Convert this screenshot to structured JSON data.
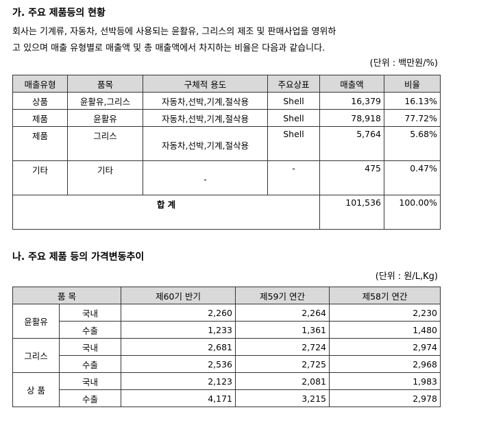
{
  "products": {
    "heading": "가. 주요 제품등의 현황",
    "description": [
      "회사는 기계류, 자동차, 선박등에 사용되는 윤활유, 그리스의 제조 및 판매사업을 영위하",
      "고 있으며 매출 유형별로 매출액 및 총 매출액에서 차지하는 비율은 다음과 같습니다."
    ],
    "unit": "(단위 : 백만원/%)",
    "columns": [
      "매출유형",
      "품목",
      "구체적 용도",
      "주요상표",
      "매출액",
      "비율"
    ],
    "rows": [
      [
        "상품",
        "윤활유,그리스",
        "자동차,선박,기계,절삭용",
        "Shell",
        "16,379",
        "16.13%"
      ],
      [
        "제품",
        "윤활유",
        "자동차,선박,기계,절삭용",
        "Shell",
        "78,918",
        "77.72%"
      ],
      [
        "제품",
        "그리스",
        "자동차,선박,기계,절삭용",
        "Shell",
        "5,764",
        "5.68%"
      ],
      [
        "기타",
        "기타",
        "-",
        "-",
        "475",
        "0.47%"
      ]
    ],
    "total": {
      "label": "합 계",
      "amount": "101,536",
      "ratio": "100.00%"
    }
  },
  "prices": {
    "heading": "나. 주요 제품 등의 가격변동추이",
    "unit": "(단위 : 원/L,Kg)",
    "columns": [
      "품 목",
      "제60기 반기",
      "제59기 연간",
      "제58기 연간"
    ],
    "groups": [
      {
        "name": "윤활유",
        "rows": [
          {
            "market": "국내",
            "values": [
              "2,260",
              "2,264",
              "2,230"
            ]
          },
          {
            "market": "수출",
            "values": [
              "1,233",
              "1,361",
              "1,480"
            ]
          }
        ]
      },
      {
        "name": "그리스",
        "rows": [
          {
            "market": "국내",
            "values": [
              "2,681",
              "2,724",
              "2,974"
            ]
          },
          {
            "market": "수출",
            "values": [
              "2,536",
              "2,725",
              "2,968"
            ]
          }
        ]
      },
      {
        "name": "상 품",
        "rows": [
          {
            "market": "국내",
            "values": [
              "2,123",
              "2,081",
              "1,983"
            ]
          },
          {
            "market": "수출",
            "values": [
              "4,171",
              "3,215",
              "2,978"
            ]
          }
        ]
      }
    ]
  }
}
